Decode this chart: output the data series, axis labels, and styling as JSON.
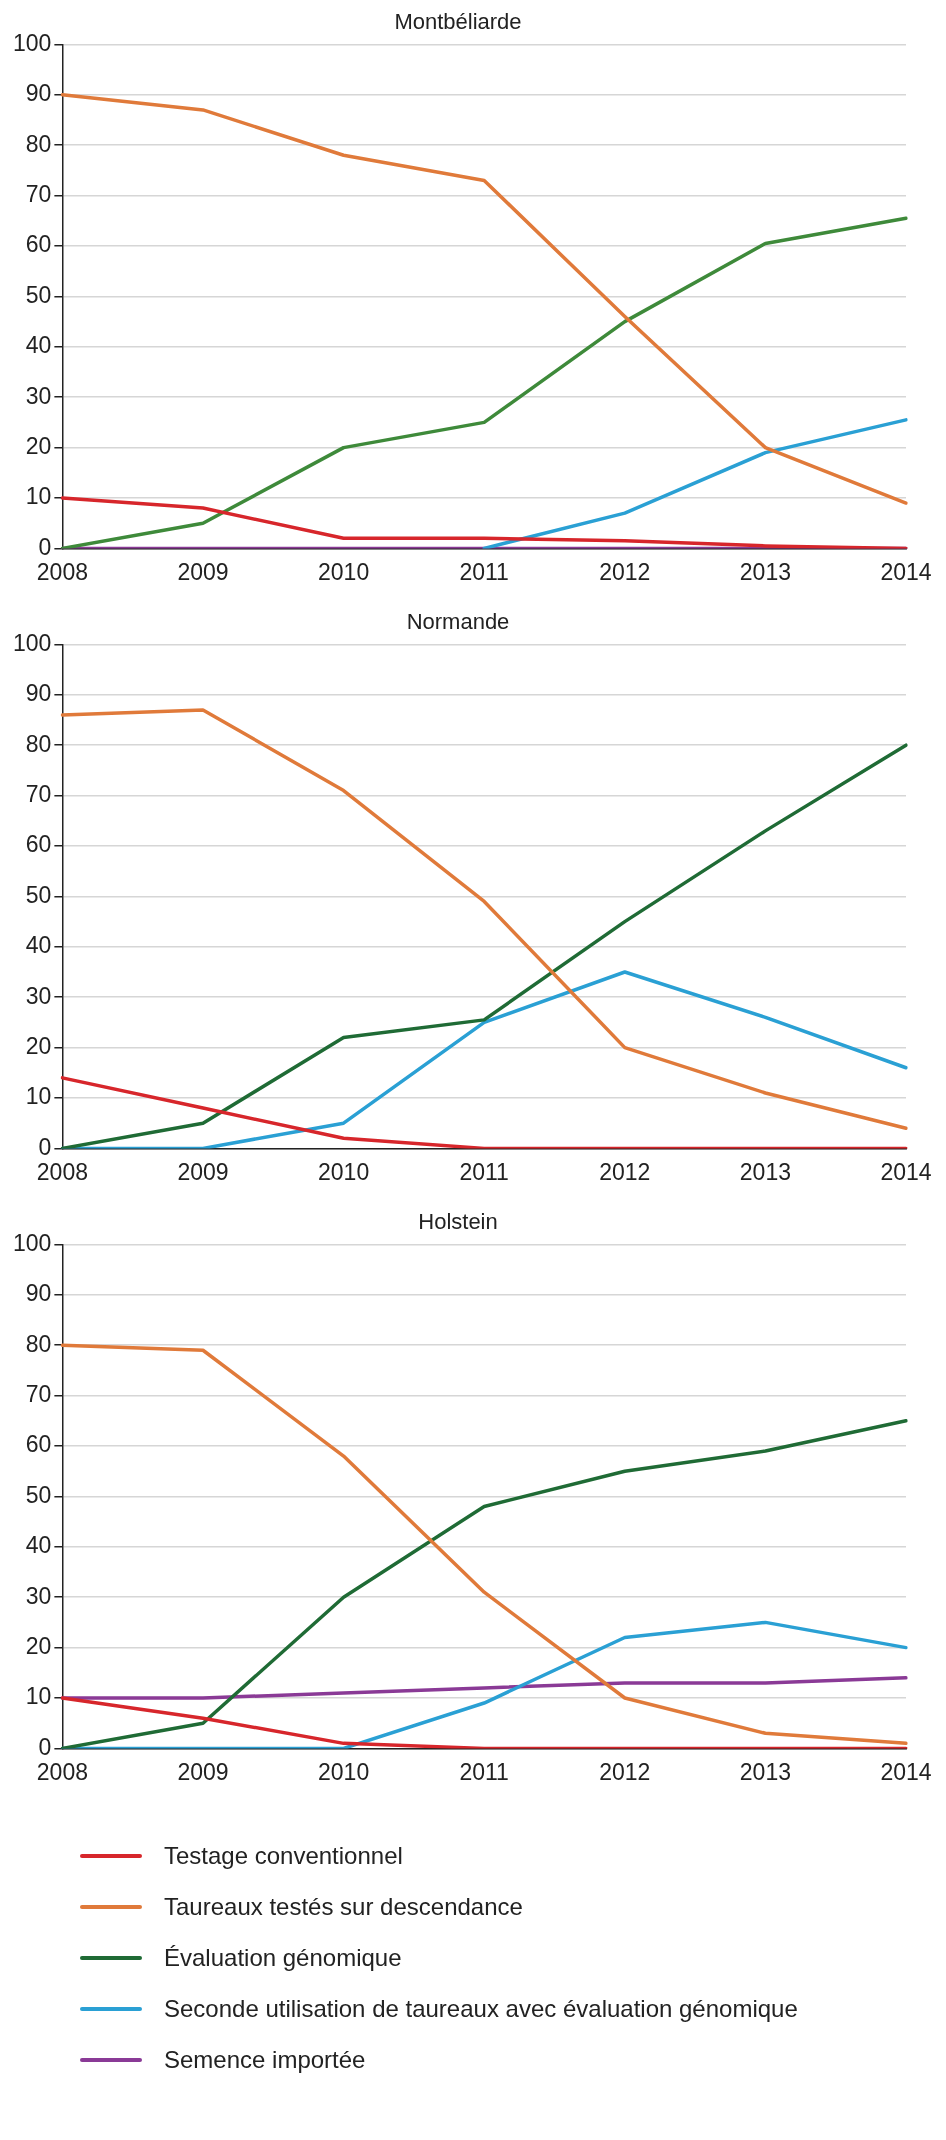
{
  "chart_data": [
    {
      "type": "line",
      "title": "Montbéliarde",
      "categories": [
        "2008",
        "2009",
        "2010",
        "2011",
        "2012",
        "2013",
        "2014"
      ],
      "ylim": [
        0,
        100
      ],
      "yticks": [
        0,
        10,
        20,
        30,
        40,
        50,
        60,
        70,
        80,
        90,
        100
      ],
      "grid": "y",
      "marker": "none",
      "line_style": "solid",
      "series": [
        {
          "color": "#d7262b",
          "values": [
            10,
            8,
            2,
            2,
            1.5,
            0.5,
            0
          ]
        },
        {
          "color": "#e07a3a",
          "values": [
            90,
            87,
            78,
            73,
            46,
            20,
            9
          ]
        },
        {
          "color": "#3e8a3a",
          "values": [
            0,
            5,
            20,
            25,
            45,
            60.5,
            65.5
          ]
        },
        {
          "color": "#2aa0d4",
          "values": [
            null,
            null,
            null,
            0,
            7,
            19,
            25.5
          ]
        },
        {
          "color": "#8a3a96",
          "values": [
            0,
            0,
            0,
            0,
            0,
            0,
            0
          ]
        }
      ]
    },
    {
      "type": "line",
      "title": "Normande",
      "categories": [
        "2008",
        "2009",
        "2010",
        "2011",
        "2012",
        "2013",
        "2014"
      ],
      "ylim": [
        0,
        100
      ],
      "yticks": [
        0,
        10,
        20,
        30,
        40,
        50,
        60,
        70,
        80,
        90,
        100
      ],
      "grid": "y",
      "marker": "none",
      "line_style": "solid",
      "series": [
        {
          "color": "#d7262b",
          "values": [
            14,
            8,
            2,
            0,
            0,
            0,
            0
          ]
        },
        {
          "color": "#e07a3a",
          "values": [
            86,
            87,
            71,
            49,
            20,
            11,
            4
          ]
        },
        {
          "color": "#1f6b35",
          "values": [
            0,
            5,
            22,
            25.5,
            45,
            63,
            80
          ]
        },
        {
          "color": "#2aa0d4",
          "values": [
            0,
            0,
            5,
            25,
            35,
            26,
            16
          ]
        }
      ]
    },
    {
      "type": "line",
      "title": "Holstein",
      "categories": [
        "2008",
        "2009",
        "2010",
        "2011",
        "2012",
        "2013",
        "2014"
      ],
      "ylim": [
        0,
        100
      ],
      "yticks": [
        0,
        10,
        20,
        30,
        40,
        50,
        60,
        70,
        80,
        90,
        100
      ],
      "grid": "y",
      "marker": "none",
      "line_style": "solid",
      "legend": "bottom",
      "series": [
        {
          "name": "Testage conventionnel",
          "color": "#d7262b",
          "values": [
            10,
            6,
            1,
            0,
            0,
            0,
            0
          ]
        },
        {
          "name": "Taureaux testés sur descendance",
          "color": "#e07a3a",
          "values": [
            80,
            79,
            58,
            31,
            10,
            3,
            1
          ]
        },
        {
          "name": "Évaluation génomique",
          "color": "#1f6b35",
          "values": [
            0,
            5,
            30,
            48,
            55,
            59,
            65
          ]
        },
        {
          "name": "Seconde utilisation de taureaux avec évaluation génomique",
          "color": "#2aa0d4",
          "values": [
            0,
            0,
            0,
            9,
            22,
            25,
            20
          ]
        },
        {
          "name": "Semence importée",
          "color": "#8a3a96",
          "values": [
            10,
            10,
            11,
            12,
            13,
            13,
            14
          ]
        }
      ]
    }
  ]
}
